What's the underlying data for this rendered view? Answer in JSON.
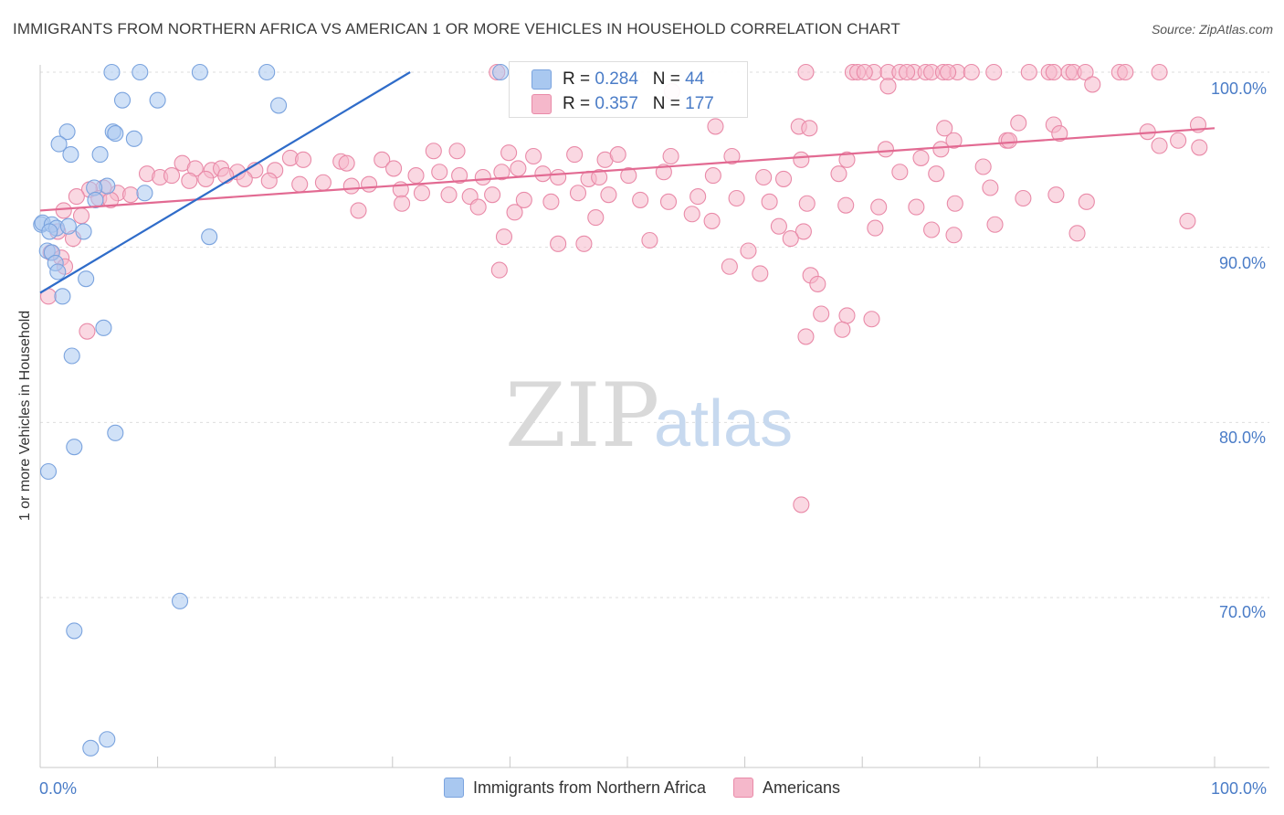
{
  "title": "IMMIGRANTS FROM NORTHERN AFRICA VS AMERICAN 1 OR MORE VEHICLES IN HOUSEHOLD CORRELATION CHART",
  "source": "Source: ZipAtlas.com",
  "watermark": {
    "zip": "ZIP",
    "atlas": "atlas"
  },
  "stats": {
    "blue": {
      "r_label": "R = ",
      "r_value": "0.284",
      "n_label": "N = ",
      "n_value": "44"
    },
    "pink": {
      "r_label": "R = ",
      "r_value": "0.357",
      "n_label": "N = ",
      "n_value": "177"
    }
  },
  "colors": {
    "blue_fill": "#a9c8f0",
    "blue_stroke": "#7aa3de",
    "blue_line": "#2f6cc9",
    "pink_fill": "#f5b8cb",
    "pink_stroke": "#e98aa8",
    "pink_line": "#e26a92",
    "axis_text": "#4a7cc7",
    "grid": "#dedede"
  },
  "chart_data": {
    "type": "scatter",
    "title": "IMMIGRANTS FROM NORTHERN AFRICA VS AMERICAN 1 OR MORE VEHICLES IN HOUSEHOLD CORRELATION CHART",
    "xlabel": "",
    "ylabel": "1 or more Vehicles in Household",
    "x_tick_labels": [
      "0.0%",
      "100.0%"
    ],
    "y_tick_labels": [
      "100.0%",
      "90.0%",
      "80.0%",
      "70.0%"
    ],
    "xlim": [
      0,
      100
    ],
    "ylim": [
      60.5,
      100.8
    ],
    "grid": true,
    "legend_position": "bottom-center",
    "series": [
      {
        "name": "Immigrants from Northern Africa",
        "color": "blue",
        "trend": {
          "x1": 0,
          "y1": 87.4,
          "x2": 31.5,
          "y2": 100.0
        },
        "points": [
          [
            6.1,
            100
          ],
          [
            8.5,
            100
          ],
          [
            13.6,
            100
          ],
          [
            19.3,
            100
          ],
          [
            39.2,
            100
          ],
          [
            7.0,
            98.4
          ],
          [
            10.0,
            98.4
          ],
          [
            20.3,
            98.1
          ],
          [
            2.3,
            96.6
          ],
          [
            6.2,
            96.6
          ],
          [
            6.4,
            96.5
          ],
          [
            8.0,
            96.2
          ],
          [
            1.6,
            95.9
          ],
          [
            2.6,
            95.3
          ],
          [
            5.1,
            95.3
          ],
          [
            5.7,
            93.5
          ],
          [
            4.6,
            93.4
          ],
          [
            8.9,
            93.1
          ],
          [
            4.7,
            92.7
          ],
          [
            0.1,
            91.3
          ],
          [
            0.2,
            91.4
          ],
          [
            1.0,
            91.3
          ],
          [
            1.4,
            91.1
          ],
          [
            2.4,
            91.2
          ],
          [
            0.8,
            90.9
          ],
          [
            3.7,
            90.9
          ],
          [
            14.4,
            90.6
          ],
          [
            0.6,
            89.8
          ],
          [
            1.0,
            89.7
          ],
          [
            1.3,
            89.1
          ],
          [
            1.5,
            88.6
          ],
          [
            3.9,
            88.2
          ],
          [
            1.9,
            87.2
          ],
          [
            5.4,
            85.4
          ],
          [
            2.7,
            83.8
          ],
          [
            6.4,
            79.4
          ],
          [
            2.9,
            78.6
          ],
          [
            0.7,
            77.2
          ],
          [
            11.9,
            69.8
          ],
          [
            2.9,
            68.1
          ],
          [
            5.7,
            61.9
          ],
          [
            4.3,
            61.4
          ]
        ]
      },
      {
        "name": "Americans",
        "color": "pink",
        "trend": {
          "x1": 0,
          "y1": 92.1,
          "x2": 100,
          "y2": 96.8
        },
        "points": [
          [
            38.9,
            100
          ],
          [
            65.2,
            100
          ],
          [
            69.2,
            100
          ],
          [
            69.6,
            100
          ],
          [
            71.0,
            100
          ],
          [
            72.2,
            100
          ],
          [
            73.2,
            100
          ],
          [
            74.4,
            100
          ],
          [
            75.4,
            100
          ],
          [
            75.9,
            100
          ],
          [
            76.9,
            100
          ],
          [
            78.1,
            100
          ],
          [
            79.3,
            100
          ],
          [
            81.2,
            100
          ],
          [
            84.2,
            100
          ],
          [
            85.9,
            100
          ],
          [
            86.3,
            100
          ],
          [
            87.6,
            100
          ],
          [
            88.0,
            100
          ],
          [
            89.0,
            100
          ],
          [
            91.9,
            100
          ],
          [
            92.4,
            100
          ],
          [
            95.3,
            100
          ],
          [
            73.8,
            100
          ],
          [
            77.3,
            100
          ],
          [
            70.2,
            100
          ],
          [
            89.6,
            99.3
          ],
          [
            72.2,
            99.2
          ],
          [
            53.8,
            98.9
          ],
          [
            83.3,
            97.1
          ],
          [
            86.3,
            97.0
          ],
          [
            98.6,
            97.0
          ],
          [
            57.5,
            96.9
          ],
          [
            64.6,
            96.9
          ],
          [
            65.5,
            96.8
          ],
          [
            77.0,
            96.8
          ],
          [
            94.3,
            96.6
          ],
          [
            86.8,
            96.5
          ],
          [
            77.8,
            96.1
          ],
          [
            82.3,
            96.1
          ],
          [
            82.5,
            96.1
          ],
          [
            95.3,
            95.8
          ],
          [
            76.7,
            95.6
          ],
          [
            72.0,
            95.6
          ],
          [
            96.9,
            96.1
          ],
          [
            98.7,
            95.7
          ],
          [
            33.5,
            95.5
          ],
          [
            35.5,
            95.5
          ],
          [
            39.9,
            95.4
          ],
          [
            42.0,
            95.2
          ],
          [
            45.5,
            95.3
          ],
          [
            48.1,
            95.0
          ],
          [
            49.2,
            95.3
          ],
          [
            53.7,
            95.2
          ],
          [
            58.9,
            95.2
          ],
          [
            64.8,
            95.0
          ],
          [
            68.7,
            95.0
          ],
          [
            75.0,
            95.1
          ],
          [
            80.3,
            94.6
          ],
          [
            21.3,
            95.1
          ],
          [
            22.4,
            95.0
          ],
          [
            25.6,
            94.9
          ],
          [
            26.1,
            94.8
          ],
          [
            29.1,
            95.0
          ],
          [
            30.1,
            94.5
          ],
          [
            32.0,
            94.1
          ],
          [
            34.0,
            94.3
          ],
          [
            35.7,
            94.1
          ],
          [
            37.7,
            94.0
          ],
          [
            39.3,
            94.3
          ],
          [
            40.7,
            94.5
          ],
          [
            42.8,
            94.2
          ],
          [
            44.1,
            94.0
          ],
          [
            46.7,
            93.9
          ],
          [
            47.6,
            94.0
          ],
          [
            50.1,
            94.1
          ],
          [
            53.1,
            94.3
          ],
          [
            57.3,
            94.1
          ],
          [
            61.6,
            94.0
          ],
          [
            63.3,
            93.9
          ],
          [
            68.0,
            94.2
          ],
          [
            73.2,
            94.3
          ],
          [
            76.3,
            94.2
          ],
          [
            12.1,
            94.8
          ],
          [
            13.2,
            94.5
          ],
          [
            14.6,
            94.4
          ],
          [
            15.4,
            94.5
          ],
          [
            16.8,
            94.3
          ],
          [
            18.3,
            94.4
          ],
          [
            20.0,
            94.4
          ],
          [
            9.1,
            94.2
          ],
          [
            10.2,
            94.0
          ],
          [
            11.2,
            94.1
          ],
          [
            12.7,
            93.8
          ],
          [
            14.1,
            93.9
          ],
          [
            15.8,
            94.1
          ],
          [
            17.4,
            93.9
          ],
          [
            19.5,
            93.8
          ],
          [
            22.1,
            93.6
          ],
          [
            24.1,
            93.7
          ],
          [
            26.5,
            93.5
          ],
          [
            28.0,
            93.6
          ],
          [
            30.7,
            93.3
          ],
          [
            32.5,
            93.1
          ],
          [
            34.8,
            93.0
          ],
          [
            36.6,
            92.9
          ],
          [
            38.5,
            93.0
          ],
          [
            41.2,
            92.7
          ],
          [
            43.5,
            92.6
          ],
          [
            45.8,
            93.1
          ],
          [
            48.4,
            93.0
          ],
          [
            51.1,
            92.7
          ],
          [
            53.5,
            92.6
          ],
          [
            56.0,
            92.9
          ],
          [
            59.3,
            92.8
          ],
          [
            62.1,
            92.6
          ],
          [
            65.3,
            92.5
          ],
          [
            68.6,
            92.4
          ],
          [
            71.4,
            92.3
          ],
          [
            74.6,
            92.3
          ],
          [
            77.9,
            92.5
          ],
          [
            80.9,
            93.4
          ],
          [
            83.7,
            92.8
          ],
          [
            86.5,
            93.0
          ],
          [
            89.1,
            92.6
          ],
          [
            5.4,
            93.4
          ],
          [
            6.6,
            93.1
          ],
          [
            7.7,
            93.0
          ],
          [
            4.2,
            93.3
          ],
          [
            5.0,
            92.8
          ],
          [
            3.1,
            92.9
          ],
          [
            6.0,
            92.7
          ],
          [
            2.0,
            92.1
          ],
          [
            3.5,
            91.8
          ],
          [
            27.1,
            92.1
          ],
          [
            30.8,
            92.5
          ],
          [
            37.3,
            92.3
          ],
          [
            40.4,
            92.0
          ],
          [
            47.3,
            91.7
          ],
          [
            55.5,
            91.9
          ],
          [
            57.2,
            91.5
          ],
          [
            62.9,
            91.2
          ],
          [
            65.0,
            90.9
          ],
          [
            71.1,
            91.1
          ],
          [
            75.9,
            91.0
          ],
          [
            77.8,
            90.7
          ],
          [
            81.3,
            91.3
          ],
          [
            88.3,
            90.8
          ],
          [
            97.7,
            91.5
          ],
          [
            1.5,
            90.9
          ],
          [
            2.8,
            90.5
          ],
          [
            39.5,
            90.6
          ],
          [
            44.1,
            90.2
          ],
          [
            46.3,
            90.2
          ],
          [
            51.9,
            90.4
          ],
          [
            63.9,
            90.5
          ],
          [
            60.3,
            89.8
          ],
          [
            0.9,
            89.7
          ],
          [
            1.8,
            89.4
          ],
          [
            2.1,
            88.9
          ],
          [
            39.1,
            88.7
          ],
          [
            58.7,
            88.9
          ],
          [
            61.3,
            88.5
          ],
          [
            65.6,
            88.4
          ],
          [
            66.2,
            87.9
          ],
          [
            0.7,
            87.2
          ],
          [
            66.5,
            86.2
          ],
          [
            68.7,
            86.1
          ],
          [
            70.8,
            85.9
          ],
          [
            65.2,
            84.9
          ],
          [
            68.3,
            85.3
          ],
          [
            4.0,
            85.2
          ],
          [
            64.8,
            75.3
          ]
        ]
      }
    ]
  }
}
